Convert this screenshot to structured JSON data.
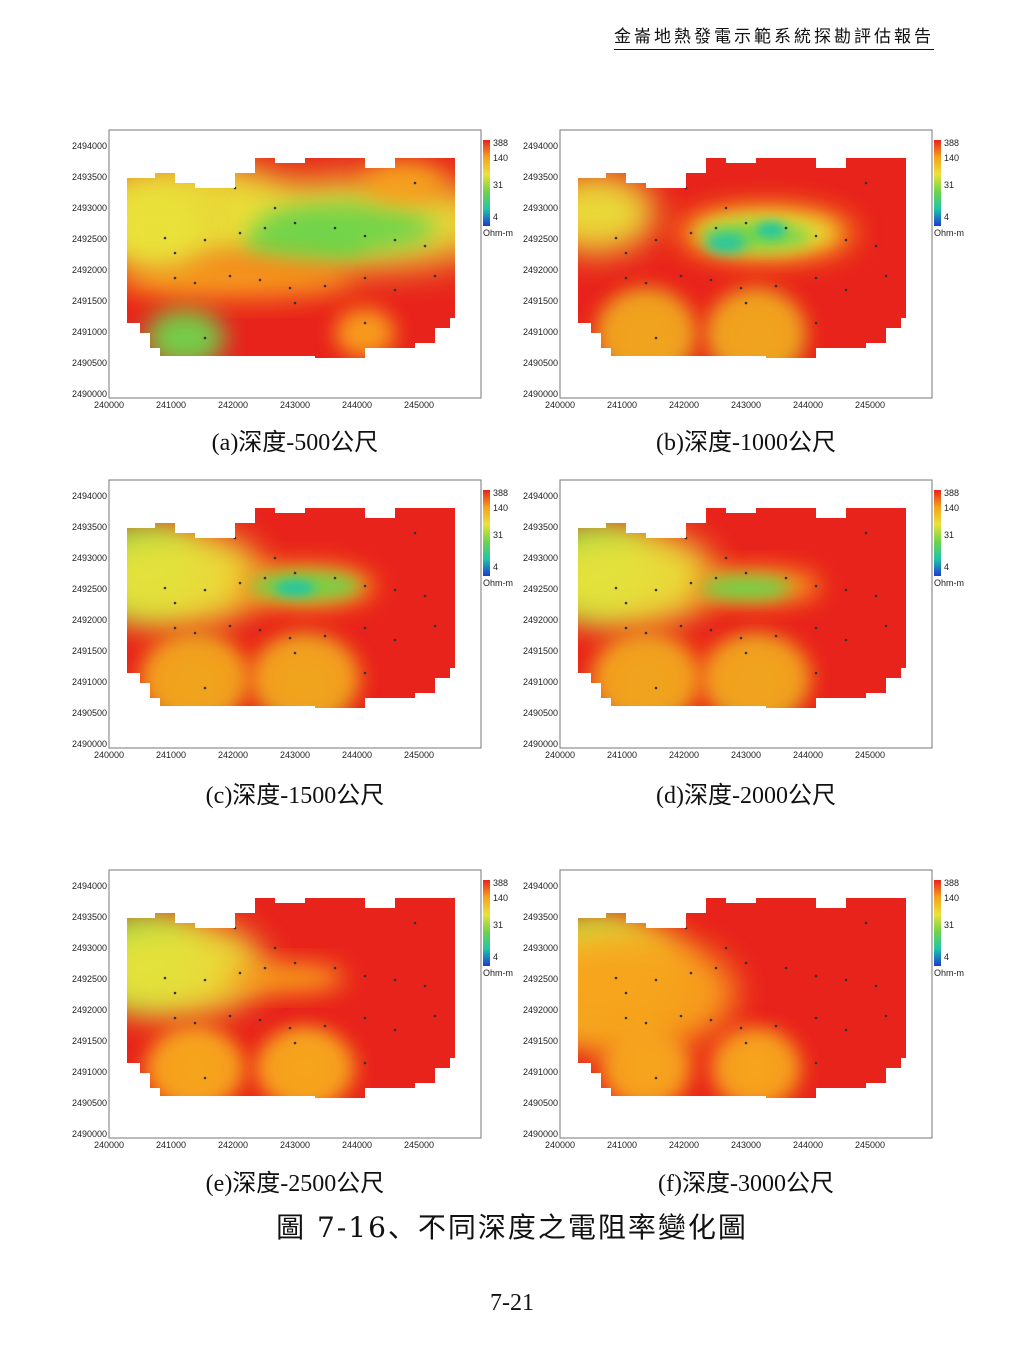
{
  "header": {
    "title": "金崙地熱發電示範系統探勘評估報告"
  },
  "figure": {
    "caption": "圖 7-16、不同深度之電阻率變化圖",
    "panels": [
      {
        "label": "(a)深度-500公尺",
        "variant": "a"
      },
      {
        "label": "(b)深度-1000公尺",
        "variant": "b"
      },
      {
        "label": "(c)深度-1500公尺",
        "variant": "c"
      },
      {
        "label": "(d)深度-2000公尺",
        "variant": "d"
      },
      {
        "label": "(e)深度-2500公尺",
        "variant": "e"
      },
      {
        "label": "(f)深度-3000公尺",
        "variant": "f"
      }
    ],
    "y_ticks": [
      "2494000",
      "2493500",
      "2493000",
      "2492500",
      "2492000",
      "2491500",
      "2491000",
      "2490500",
      "2490000"
    ],
    "x_ticks": [
      "240000",
      "241000",
      "242000",
      "243000",
      "244000",
      "245000"
    ],
    "legend": {
      "values": [
        "388",
        "140",
        "31",
        "4"
      ],
      "unit": "Ohm-m"
    },
    "colors": {
      "high": "#e8231c",
      "mid_high": "#f7a21b",
      "mid": "#e9e23a",
      "mid_low": "#6fd44b",
      "low": "#20c6a6",
      "lowest": "#1b3bd6"
    }
  },
  "page": {
    "number": "7-21"
  }
}
